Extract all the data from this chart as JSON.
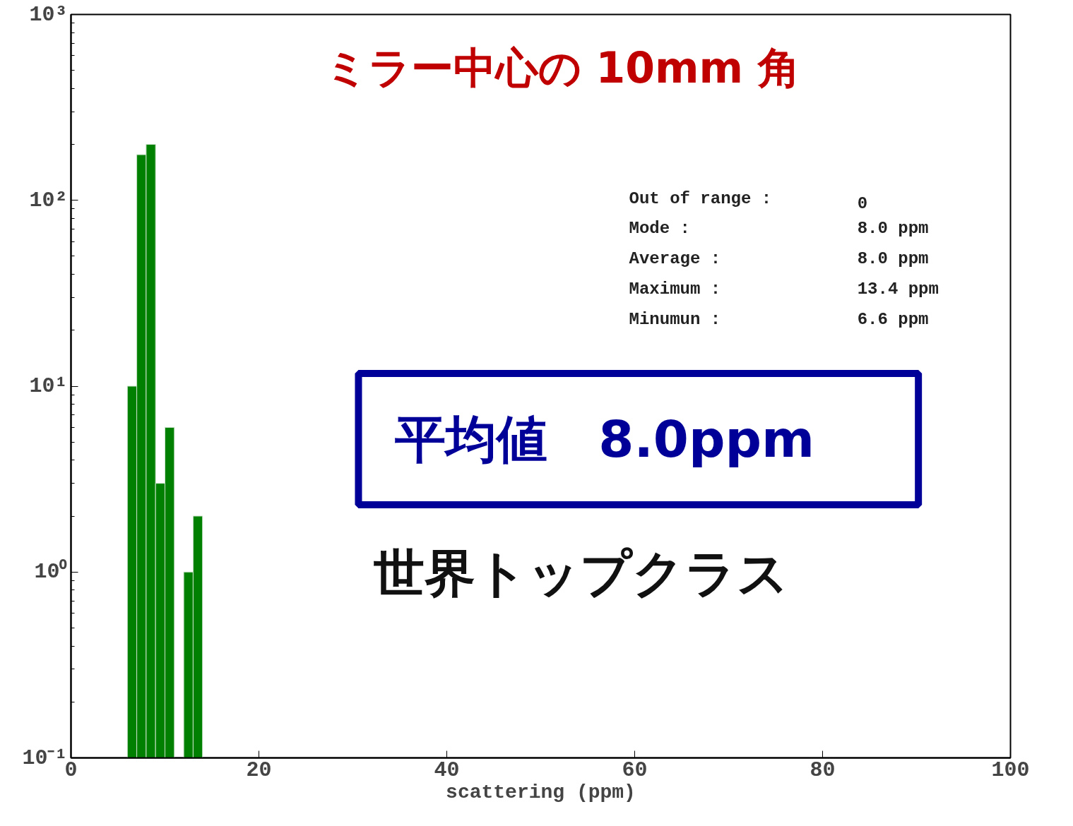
{
  "chart_data": {
    "type": "histogram",
    "title": "ミラー中心の 10mm 角",
    "xlabel": "scattering (ppm)",
    "bins": [
      6,
      7,
      8,
      9,
      10,
      11,
      12,
      13,
      14
    ],
    "values": [
      10,
      176,
      200,
      3,
      6,
      null,
      1,
      2
    ],
    "color": "#008000",
    "log": "y",
    "xlim": [
      0,
      100
    ],
    "xticks": [
      0,
      20,
      40,
      60,
      80,
      100
    ],
    "ylim": [
      0.1,
      1000
    ],
    "yticks": [
      {
        "value": 0.1,
        "label": "10⁻¹"
      },
      {
        "value": 1,
        "label": "10⁰"
      },
      {
        "value": 10,
        "label": "10¹"
      },
      {
        "value": 100,
        "label": "10²"
      },
      {
        "value": 1000,
        "label": "10³"
      }
    ],
    "grid": false,
    "annotations": [
      "Out of range :",
      "0",
      "Mode :",
      "8.0 ppm",
      "Average :",
      "8.0 ppm",
      "Maximum :",
      "13.4 ppm",
      "Minumun :",
      "6.6 ppm",
      "平均値　8.0ppm",
      "世界トップクラス"
    ]
  }
}
